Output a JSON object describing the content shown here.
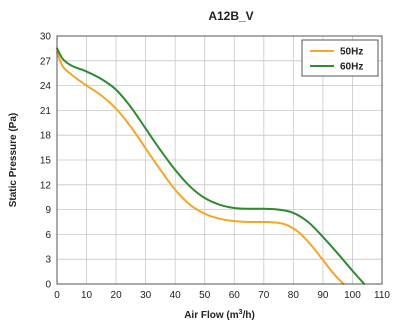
{
  "chart_data": {
    "type": "line",
    "title": "A12B_V",
    "xlabel": "Air Flow (m",
    "xlabel_sup": "3",
    "xlabel_tail": "/h)",
    "ylabel": "Static Pressure (Pa)",
    "xlim": [
      0,
      110
    ],
    "ylim": [
      0,
      30
    ],
    "xticks": [
      0,
      10,
      20,
      30,
      40,
      50,
      60,
      70,
      80,
      90,
      100,
      110
    ],
    "yticks": [
      0,
      3,
      6,
      9,
      12,
      15,
      18,
      21,
      24,
      27,
      30
    ],
    "grid": true,
    "legend_position": "top-right",
    "series": [
      {
        "name": "50Hz",
        "color": "#f5a623",
        "x": [
          0,
          2,
          5,
          10,
          15,
          20,
          25,
          30,
          35,
          40,
          45,
          50,
          55,
          60,
          65,
          70,
          75,
          78,
          82,
          86,
          90,
          94,
          97
        ],
        "y": [
          28,
          26.3,
          25.3,
          24,
          22.8,
          21.2,
          19,
          16.4,
          13.8,
          11.4,
          9.6,
          8.5,
          7.9,
          7.6,
          7.5,
          7.5,
          7.4,
          7.1,
          6.2,
          4.7,
          2.9,
          1.1,
          0
        ]
      },
      {
        "name": "60Hz",
        "color": "#2e8b2e",
        "x": [
          0,
          2,
          5,
          10,
          15,
          20,
          25,
          30,
          35,
          40,
          45,
          50,
          55,
          60,
          65,
          70,
          75,
          80,
          85,
          90,
          95,
          100,
          104
        ],
        "y": [
          28.5,
          27.2,
          26.4,
          25.7,
          24.8,
          23.5,
          21.4,
          18.8,
          16.2,
          13.8,
          11.8,
          10.4,
          9.6,
          9.2,
          9.1,
          9.1,
          9,
          8.6,
          7.5,
          5.7,
          3.7,
          1.6,
          0
        ]
      }
    ]
  }
}
